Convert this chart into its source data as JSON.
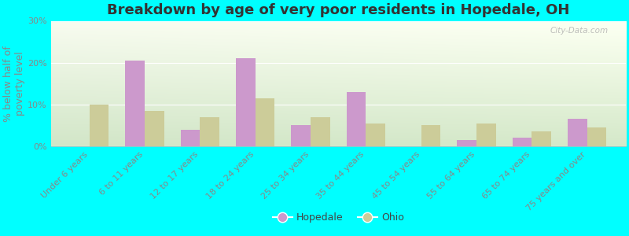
{
  "title": "Breakdown by age of very poor residents in Hopedale, OH",
  "ylabel": "% below half of\npoverty level",
  "categories": [
    "Under 6 years",
    "6 to 11 years",
    "12 to 17 years",
    "18 to 24 years",
    "25 to 34 years",
    "35 to 44 years",
    "45 to 54 years",
    "55 to 64 years",
    "65 to 74 years",
    "75 years and over"
  ],
  "hopedale": [
    0,
    20.5,
    4.0,
    21.0,
    5.0,
    13.0,
    0,
    1.5,
    2.0,
    6.5
  ],
  "ohio": [
    10.0,
    8.5,
    7.0,
    11.5,
    7.0,
    5.5,
    5.0,
    5.5,
    3.5,
    4.5
  ],
  "hopedale_color": "#cc99cc",
  "ohio_color": "#cccc99",
  "background_outer": "#00ffff",
  "ylim": [
    0,
    30
  ],
  "yticks": [
    0,
    10,
    20,
    30
  ],
  "ytick_labels": [
    "0%",
    "10%",
    "20%",
    "30%"
  ],
  "bar_width": 0.35,
  "title_fontsize": 13,
  "axis_label_fontsize": 9,
  "tick_fontsize": 8,
  "legend_fontsize": 9,
  "watermark": "City-Data.com"
}
